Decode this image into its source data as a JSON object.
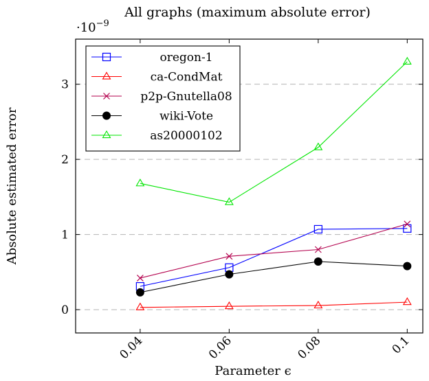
{
  "chart_data": {
    "type": "line",
    "title": "All graphs (maximum absolute error)",
    "xlabel": "Parameter ϵ",
    "ylabel": "Absolute estimated error",
    "y_scale_label": "·10",
    "y_scale_exponent": "−9",
    "x": [
      0.04,
      0.06,
      0.08,
      0.1
    ],
    "x_tick_labels": [
      "0.04",
      "0.06",
      "0.08",
      "0.1"
    ],
    "y_ticks": [
      0,
      1,
      2,
      3
    ],
    "y_tick_labels": [
      "0",
      "1",
      "2",
      "3"
    ],
    "xlim": [
      0.0255,
      0.1035
    ],
    "ylim": [
      -0.31,
      3.6
    ],
    "grid": "horizontal dashed",
    "legend_position": "top-left",
    "series": [
      {
        "name": "oregon-1",
        "color": "#0000ff",
        "marker": "square",
        "values": [
          0.31,
          0.56,
          1.07,
          1.08
        ]
      },
      {
        "name": "ca-CondMat",
        "color": "#ff0000",
        "marker": "triangle",
        "values": [
          0.03,
          0.045,
          0.055,
          0.1
        ]
      },
      {
        "name": "p2p-Gnutella08",
        "color": "#b3004d",
        "marker": "cross",
        "values": [
          0.42,
          0.71,
          0.8,
          1.14
        ]
      },
      {
        "name": "wiki-Vote",
        "color": "#000000",
        "marker": "circle",
        "values": [
          0.23,
          0.47,
          0.64,
          0.58
        ]
      },
      {
        "name": "as20000102",
        "color": "#00e600",
        "marker": "triangle",
        "values": [
          1.68,
          1.43,
          2.16,
          3.3
        ]
      }
    ]
  }
}
